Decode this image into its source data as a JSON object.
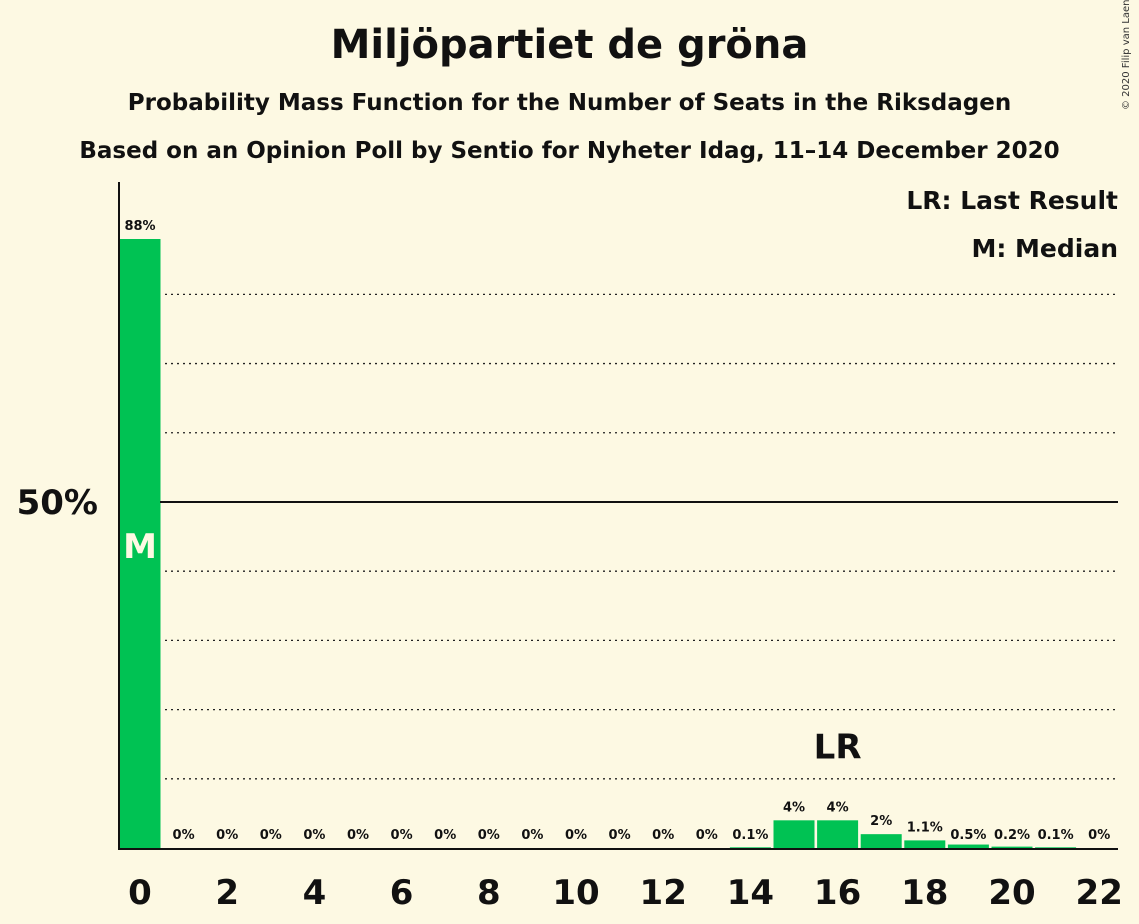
{
  "title": "Miljöpartiet de gröna",
  "subtitle": "Probability Mass Function for the Number of Seats in the Riksdagen",
  "subtitle2": "Based on an Opinion Poll by Sentio for Nyheter Idag, 11–14 December 2020",
  "copyright": "© 2020 Filip van Laenen",
  "legend": {
    "last_result": "LR: Last Result",
    "median": "M: Median"
  },
  "colors": {
    "bar": "#00c253",
    "background": "#fdf9e3",
    "text": "#111111"
  },
  "chart_data": {
    "type": "bar",
    "categories": [
      0,
      1,
      2,
      3,
      4,
      5,
      6,
      7,
      8,
      9,
      10,
      11,
      12,
      13,
      14,
      15,
      16,
      17,
      18,
      19,
      20,
      21,
      22
    ],
    "values": [
      88,
      0,
      0,
      0,
      0,
      0,
      0,
      0,
      0,
      0,
      0,
      0,
      0,
      0,
      0.1,
      4,
      4,
      2,
      1.1,
      0.5,
      0.2,
      0.1,
      0
    ],
    "value_labels": [
      "88%",
      "0%",
      "0%",
      "0%",
      "0%",
      "0%",
      "0%",
      "0%",
      "0%",
      "0%",
      "0%",
      "0%",
      "0%",
      "0%",
      "0.1%",
      "4%",
      "4%",
      "2%",
      "1.1%",
      "0.5%",
      "0.2%",
      "0.1%",
      "0%"
    ],
    "x_tick_labels": [
      "0",
      "2",
      "4",
      "6",
      "8",
      "10",
      "12",
      "14",
      "16",
      "18",
      "20",
      "22"
    ],
    "x_ticks": [
      0,
      2,
      4,
      6,
      8,
      10,
      12,
      14,
      16,
      18,
      20,
      22
    ],
    "y_tick_label": "50%",
    "y_tick_value": 50,
    "ylim": [
      0,
      96
    ],
    "gridlines": [
      10,
      20,
      30,
      40,
      60,
      70,
      80
    ],
    "median_seat": 0,
    "median_label": "M",
    "last_result_seat": 16,
    "last_result_label": "LR",
    "legend_position": "top-right"
  }
}
